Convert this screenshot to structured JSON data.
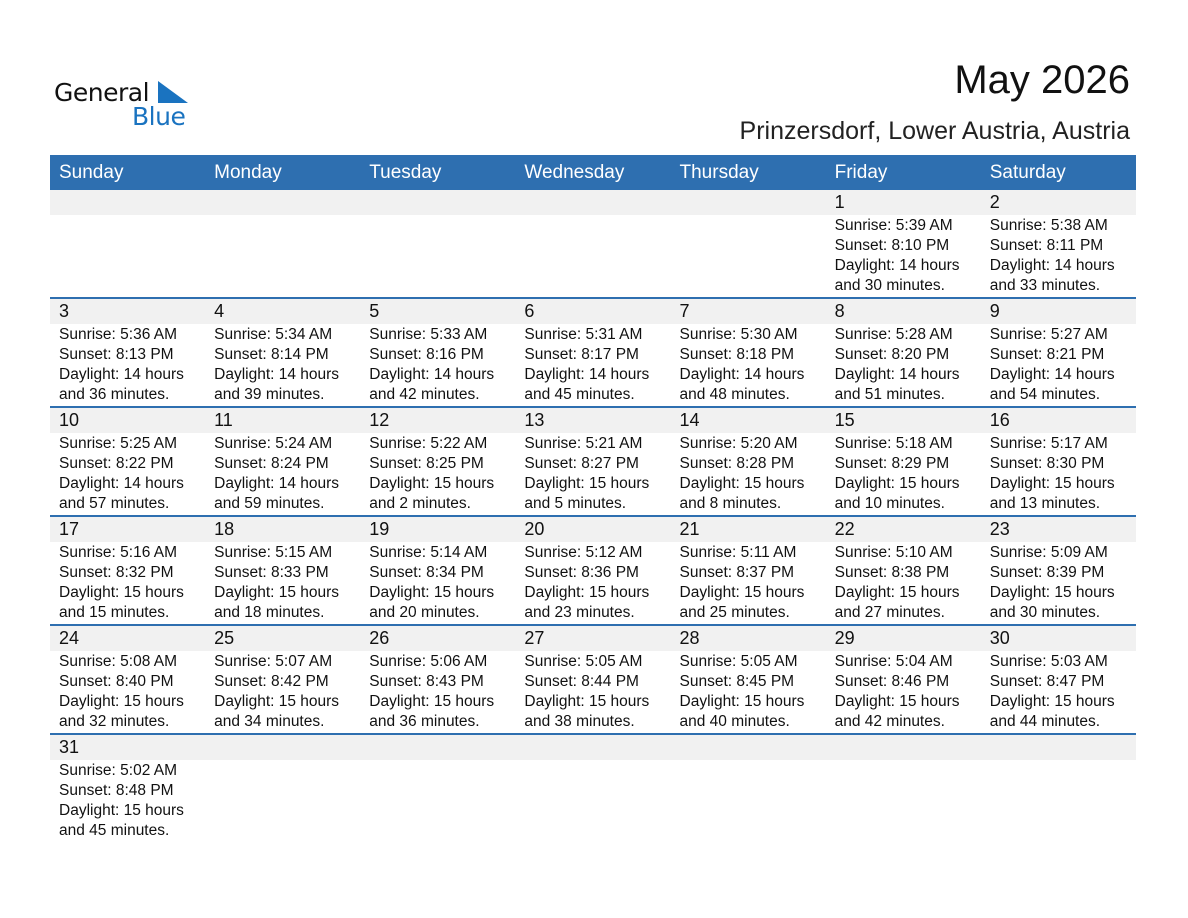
{
  "logo": {
    "word1": "General",
    "word2": "Blue"
  },
  "title": "May 2026",
  "location": "Prinzersdorf, Lower Austria, Austria",
  "colors": {
    "header": "#2e6fb0",
    "date_strip": "#f1f1f1",
    "logo_blue": "#1a73c0"
  },
  "weekdays": [
    "Sunday",
    "Monday",
    "Tuesday",
    "Wednesday",
    "Thursday",
    "Friday",
    "Saturday"
  ],
  "weeks": [
    [
      null,
      null,
      null,
      null,
      null,
      {
        "day": "1",
        "sunrise": "Sunrise: 5:39 AM",
        "sunset": "Sunset: 8:10 PM",
        "daylight1": "Daylight: 14 hours",
        "daylight2": "and 30 minutes."
      },
      {
        "day": "2",
        "sunrise": "Sunrise: 5:38 AM",
        "sunset": "Sunset: 8:11 PM",
        "daylight1": "Daylight: 14 hours",
        "daylight2": "and 33 minutes."
      }
    ],
    [
      {
        "day": "3",
        "sunrise": "Sunrise: 5:36 AM",
        "sunset": "Sunset: 8:13 PM",
        "daylight1": "Daylight: 14 hours",
        "daylight2": "and 36 minutes."
      },
      {
        "day": "4",
        "sunrise": "Sunrise: 5:34 AM",
        "sunset": "Sunset: 8:14 PM",
        "daylight1": "Daylight: 14 hours",
        "daylight2": "and 39 minutes."
      },
      {
        "day": "5",
        "sunrise": "Sunrise: 5:33 AM",
        "sunset": "Sunset: 8:16 PM",
        "daylight1": "Daylight: 14 hours",
        "daylight2": "and 42 minutes."
      },
      {
        "day": "6",
        "sunrise": "Sunrise: 5:31 AM",
        "sunset": "Sunset: 8:17 PM",
        "daylight1": "Daylight: 14 hours",
        "daylight2": "and 45 minutes."
      },
      {
        "day": "7",
        "sunrise": "Sunrise: 5:30 AM",
        "sunset": "Sunset: 8:18 PM",
        "daylight1": "Daylight: 14 hours",
        "daylight2": "and 48 minutes."
      },
      {
        "day": "8",
        "sunrise": "Sunrise: 5:28 AM",
        "sunset": "Sunset: 8:20 PM",
        "daylight1": "Daylight: 14 hours",
        "daylight2": "and 51 minutes."
      },
      {
        "day": "9",
        "sunrise": "Sunrise: 5:27 AM",
        "sunset": "Sunset: 8:21 PM",
        "daylight1": "Daylight: 14 hours",
        "daylight2": "and 54 minutes."
      }
    ],
    [
      {
        "day": "10",
        "sunrise": "Sunrise: 5:25 AM",
        "sunset": "Sunset: 8:22 PM",
        "daylight1": "Daylight: 14 hours",
        "daylight2": "and 57 minutes."
      },
      {
        "day": "11",
        "sunrise": "Sunrise: 5:24 AM",
        "sunset": "Sunset: 8:24 PM",
        "daylight1": "Daylight: 14 hours",
        "daylight2": "and 59 minutes."
      },
      {
        "day": "12",
        "sunrise": "Sunrise: 5:22 AM",
        "sunset": "Sunset: 8:25 PM",
        "daylight1": "Daylight: 15 hours",
        "daylight2": "and 2 minutes."
      },
      {
        "day": "13",
        "sunrise": "Sunrise: 5:21 AM",
        "sunset": "Sunset: 8:27 PM",
        "daylight1": "Daylight: 15 hours",
        "daylight2": "and 5 minutes."
      },
      {
        "day": "14",
        "sunrise": "Sunrise: 5:20 AM",
        "sunset": "Sunset: 8:28 PM",
        "daylight1": "Daylight: 15 hours",
        "daylight2": "and 8 minutes."
      },
      {
        "day": "15",
        "sunrise": "Sunrise: 5:18 AM",
        "sunset": "Sunset: 8:29 PM",
        "daylight1": "Daylight: 15 hours",
        "daylight2": "and 10 minutes."
      },
      {
        "day": "16",
        "sunrise": "Sunrise: 5:17 AM",
        "sunset": "Sunset: 8:30 PM",
        "daylight1": "Daylight: 15 hours",
        "daylight2": "and 13 minutes."
      }
    ],
    [
      {
        "day": "17",
        "sunrise": "Sunrise: 5:16 AM",
        "sunset": "Sunset: 8:32 PM",
        "daylight1": "Daylight: 15 hours",
        "daylight2": "and 15 minutes."
      },
      {
        "day": "18",
        "sunrise": "Sunrise: 5:15 AM",
        "sunset": "Sunset: 8:33 PM",
        "daylight1": "Daylight: 15 hours",
        "daylight2": "and 18 minutes."
      },
      {
        "day": "19",
        "sunrise": "Sunrise: 5:14 AM",
        "sunset": "Sunset: 8:34 PM",
        "daylight1": "Daylight: 15 hours",
        "daylight2": "and 20 minutes."
      },
      {
        "day": "20",
        "sunrise": "Sunrise: 5:12 AM",
        "sunset": "Sunset: 8:36 PM",
        "daylight1": "Daylight: 15 hours",
        "daylight2": "and 23 minutes."
      },
      {
        "day": "21",
        "sunrise": "Sunrise: 5:11 AM",
        "sunset": "Sunset: 8:37 PM",
        "daylight1": "Daylight: 15 hours",
        "daylight2": "and 25 minutes."
      },
      {
        "day": "22",
        "sunrise": "Sunrise: 5:10 AM",
        "sunset": "Sunset: 8:38 PM",
        "daylight1": "Daylight: 15 hours",
        "daylight2": "and 27 minutes."
      },
      {
        "day": "23",
        "sunrise": "Sunrise: 5:09 AM",
        "sunset": "Sunset: 8:39 PM",
        "daylight1": "Daylight: 15 hours",
        "daylight2": "and 30 minutes."
      }
    ],
    [
      {
        "day": "24",
        "sunrise": "Sunrise: 5:08 AM",
        "sunset": "Sunset: 8:40 PM",
        "daylight1": "Daylight: 15 hours",
        "daylight2": "and 32 minutes."
      },
      {
        "day": "25",
        "sunrise": "Sunrise: 5:07 AM",
        "sunset": "Sunset: 8:42 PM",
        "daylight1": "Daylight: 15 hours",
        "daylight2": "and 34 minutes."
      },
      {
        "day": "26",
        "sunrise": "Sunrise: 5:06 AM",
        "sunset": "Sunset: 8:43 PM",
        "daylight1": "Daylight: 15 hours",
        "daylight2": "and 36 minutes."
      },
      {
        "day": "27",
        "sunrise": "Sunrise: 5:05 AM",
        "sunset": "Sunset: 8:44 PM",
        "daylight1": "Daylight: 15 hours",
        "daylight2": "and 38 minutes."
      },
      {
        "day": "28",
        "sunrise": "Sunrise: 5:05 AM",
        "sunset": "Sunset: 8:45 PM",
        "daylight1": "Daylight: 15 hours",
        "daylight2": "and 40 minutes."
      },
      {
        "day": "29",
        "sunrise": "Sunrise: 5:04 AM",
        "sunset": "Sunset: 8:46 PM",
        "daylight1": "Daylight: 15 hours",
        "daylight2": "and 42 minutes."
      },
      {
        "day": "30",
        "sunrise": "Sunrise: 5:03 AM",
        "sunset": "Sunset: 8:47 PM",
        "daylight1": "Daylight: 15 hours",
        "daylight2": "and 44 minutes."
      }
    ],
    [
      {
        "day": "31",
        "sunrise": "Sunrise: 5:02 AM",
        "sunset": "Sunset: 8:48 PM",
        "daylight1": "Daylight: 15 hours",
        "daylight2": "and 45 minutes."
      },
      null,
      null,
      null,
      null,
      null,
      null
    ]
  ]
}
